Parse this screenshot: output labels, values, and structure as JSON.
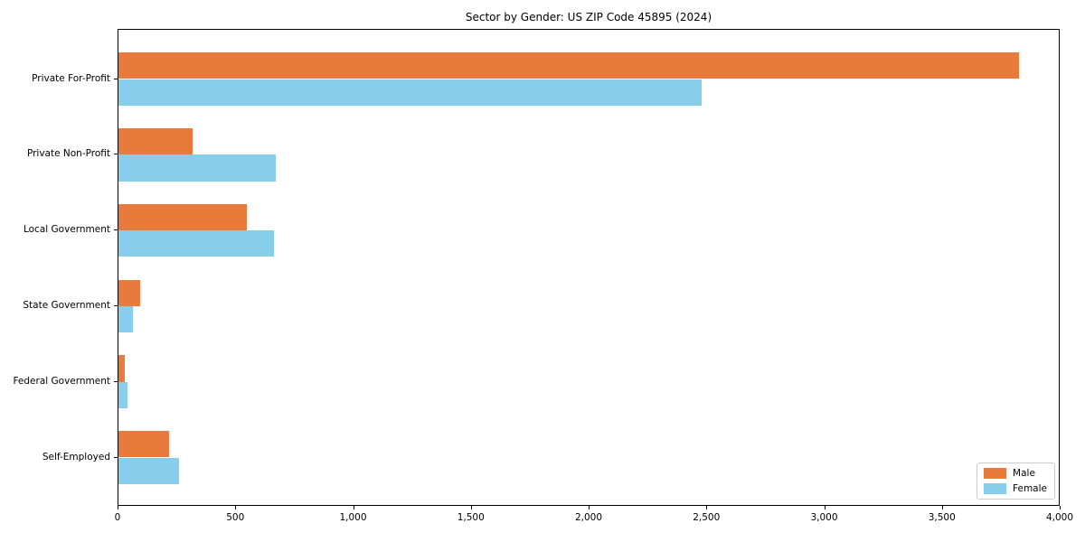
{
  "chart_data": {
    "type": "bar",
    "orientation": "horizontal",
    "title": "Sector by Gender: US ZIP Code 45895 (2024)",
    "categories": [
      "Private For-Profit",
      "Private Non-Profit",
      "Local Government",
      "State Government",
      "Federal Government",
      "Self-Employed"
    ],
    "series": [
      {
        "name": "Male",
        "color": "#E87A3C",
        "values": [
          3825,
          313,
          545,
          92,
          28,
          216
        ]
      },
      {
        "name": "Female",
        "color": "#87CEEB",
        "values": [
          2475,
          668,
          660,
          60,
          40,
          258
        ]
      }
    ],
    "xlabel": "",
    "ylabel": "",
    "xlim": [
      0,
      4000
    ],
    "xticks": [
      0,
      500,
      1000,
      1500,
      2000,
      2500,
      3000,
      3500,
      4000
    ],
    "xtick_labels": [
      "0",
      "500",
      "1,000",
      "1,500",
      "2,000",
      "2,500",
      "3,000",
      "3,500",
      "4,000"
    ],
    "grid": false,
    "legend": {
      "position": "lower right",
      "entries": [
        {
          "label": "Male",
          "color": "#E87A3C"
        },
        {
          "label": "Female",
          "color": "#87CEEB"
        }
      ]
    }
  }
}
